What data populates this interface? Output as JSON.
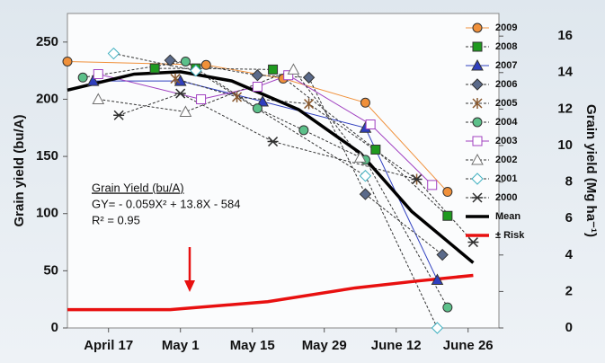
{
  "chart_data": {
    "type": "line",
    "y_label": "Grain yield (bu/A)",
    "y2_label": "Grain yield (Mg ha⁻¹)",
    "annotations": [
      "Grain Yield  (bu/A)",
      "GY= - 0.059X² + 13.8X - 584",
      "R² = 0.95"
    ],
    "xlim": [
      99,
      183
    ],
    "xticks": [
      {
        "value": 107,
        "label": "April 17"
      },
      {
        "value": 121,
        "label": "May 1"
      },
      {
        "value": 135,
        "label": "May 15"
      },
      {
        "value": 149,
        "label": "May 29"
      },
      {
        "value": 163,
        "label": "June 12"
      },
      {
        "value": 177,
        "label": "June 26"
      }
    ],
    "ylim": [
      0,
      275
    ],
    "yticks": [
      0,
      50,
      100,
      150,
      200,
      250
    ],
    "y2lim": [
      0,
      17.24
    ],
    "y2ticks": [
      0,
      2,
      4,
      6,
      8,
      10,
      12,
      14,
      16
    ],
    "legend": "right",
    "series": [
      {
        "name": "2009",
        "color": "#f0903a",
        "marker": "circle",
        "open": false,
        "dashed": false,
        "x": [
          99,
          126,
          141,
          157,
          173
        ],
        "values": [
          233,
          230,
          218,
          197,
          119
        ]
      },
      {
        "name": "2008",
        "color": "#1f9a1f",
        "marker": "square",
        "open": false,
        "dashed": true,
        "x": [
          116,
          124,
          139,
          159,
          173
        ],
        "values": [
          227,
          227,
          226,
          156,
          98
        ]
      },
      {
        "name": "2007",
        "color": "#2f3fbf",
        "marker": "triangle",
        "open": false,
        "dashed": false,
        "x": [
          104,
          121,
          137,
          157,
          171
        ],
        "values": [
          216,
          216,
          198,
          175,
          42
        ]
      },
      {
        "name": "2006",
        "color": "#5a6a8a",
        "marker": "diamond",
        "open": false,
        "dashed": true,
        "x": [
          119,
          136,
          146,
          157,
          172
        ],
        "values": [
          234,
          221,
          219,
          117,
          64
        ]
      },
      {
        "name": "2005",
        "color": "#8a5a30",
        "marker": "star",
        "open": false,
        "dashed": true,
        "x": [
          120,
          132,
          146,
          167
        ],
        "values": [
          218,
          202,
          196,
          130
        ]
      },
      {
        "name": "2004",
        "color": "#5cc08a",
        "marker": "circle",
        "open": false,
        "dashed": true,
        "x": [
          102,
          122,
          136,
          145,
          157,
          173
        ],
        "values": [
          219,
          233,
          192,
          173,
          147,
          18
        ]
      },
      {
        "name": "2003",
        "color": "#a040c0",
        "marker": "square",
        "open": true,
        "dashed": false,
        "x": [
          105,
          125,
          136,
          142,
          158,
          170
        ],
        "values": [
          222,
          200,
          211,
          221,
          178,
          125
        ]
      },
      {
        "name": "2002",
        "color": "#707070",
        "marker": "triangle",
        "open": true,
        "dashed": true,
        "x": [
          105,
          122,
          143,
          156
        ],
        "values": [
          200,
          189,
          226,
          149
        ]
      },
      {
        "name": "2001",
        "color": "#40b0c0",
        "marker": "diamond",
        "open": true,
        "dashed": true,
        "x": [
          108,
          124,
          157,
          171
        ],
        "values": [
          240,
          225,
          133,
          0
        ]
      },
      {
        "name": "2000",
        "color": "#303030",
        "marker": "asterisk",
        "open": false,
        "dashed": true,
        "x": [
          109,
          121,
          139,
          167,
          178
        ],
        "values": [
          186,
          205,
          163,
          130,
          75
        ]
      },
      {
        "name": "Mean",
        "color": "#000000",
        "marker": "none",
        "open": false,
        "dashed": false,
        "x": [
          99,
          112,
          121,
          131,
          144,
          156,
          166,
          178
        ],
        "values": [
          208,
          222,
          224,
          216,
          191,
          153,
          102,
          57
        ]
      },
      {
        "name": "± Risk",
        "color": "#e81010",
        "marker": "none",
        "open": false,
        "dashed": false,
        "x": [
          99,
          119,
          138,
          155,
          167,
          178
        ],
        "values": [
          16,
          16,
          23,
          35,
          41,
          46
        ]
      }
    ]
  }
}
